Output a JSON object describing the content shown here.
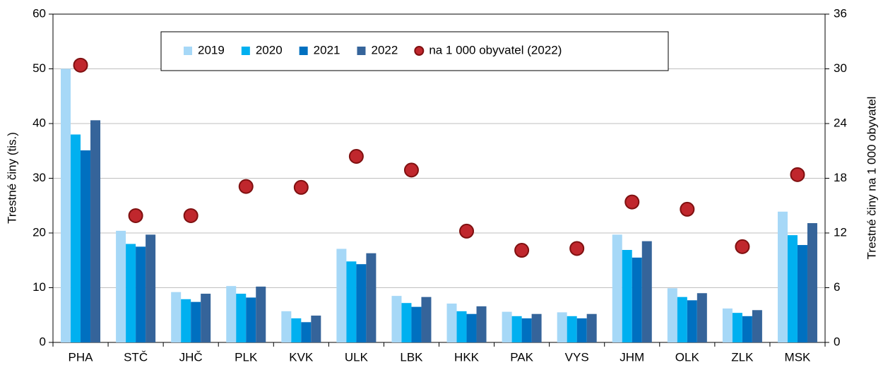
{
  "chart_data": {
    "type": "bar",
    "categories": [
      "PHA",
      "STČ",
      "JHČ",
      "PLK",
      "KVK",
      "ULK",
      "LBK",
      "HKK",
      "PAK",
      "VYS",
      "JHM",
      "OLK",
      "ZLK",
      "MSK"
    ],
    "series": [
      {
        "name": "2019",
        "color": "#a6d8f7",
        "values": [
          50,
          20.4,
          9.2,
          10.3,
          5.7,
          17.1,
          8.5,
          7.1,
          5.6,
          5.5,
          19.7,
          9.9,
          6.2,
          23.9
        ]
      },
      {
        "name": "2020",
        "color": "#00b0f0",
        "values": [
          38,
          18,
          7.9,
          8.9,
          4.4,
          14.8,
          7.2,
          5.7,
          4.8,
          4.8,
          16.9,
          8.3,
          5.4,
          19.6
        ]
      },
      {
        "name": "2021",
        "color": "#0070c0",
        "values": [
          35.1,
          17.5,
          7.4,
          8.2,
          3.7,
          14.3,
          6.5,
          5.2,
          4.4,
          4.4,
          15.5,
          7.7,
          4.8,
          17.8
        ]
      },
      {
        "name": "2022",
        "color": "#35649a",
        "values": [
          40.6,
          19.7,
          8.9,
          10.2,
          4.9,
          16.3,
          8.3,
          6.6,
          5.2,
          5.2,
          18.5,
          9.0,
          5.9,
          21.8
        ]
      },
      {
        "name": "na 1 000 obyvatel (2022)",
        "color": "#c0272d",
        "type": "scatter",
        "axis": "y2",
        "values": [
          30.4,
          13.9,
          13.9,
          17.1,
          17.0,
          20.4,
          18.9,
          12.2,
          10.1,
          10.3,
          15.4,
          14.6,
          10.5,
          18.4
        ]
      }
    ],
    "ylabel": "Trestné činy (tis.)",
    "y2label": "Trestné činy na 1 000 obyvatel",
    "ylim": [
      0,
      60
    ],
    "yticks": [
      0,
      10,
      20,
      30,
      40,
      50,
      60
    ],
    "y2lim": [
      0,
      36
    ],
    "y2ticks": [
      0,
      6,
      12,
      18,
      24,
      30,
      36
    ],
    "grid": true,
    "legend": "top"
  }
}
